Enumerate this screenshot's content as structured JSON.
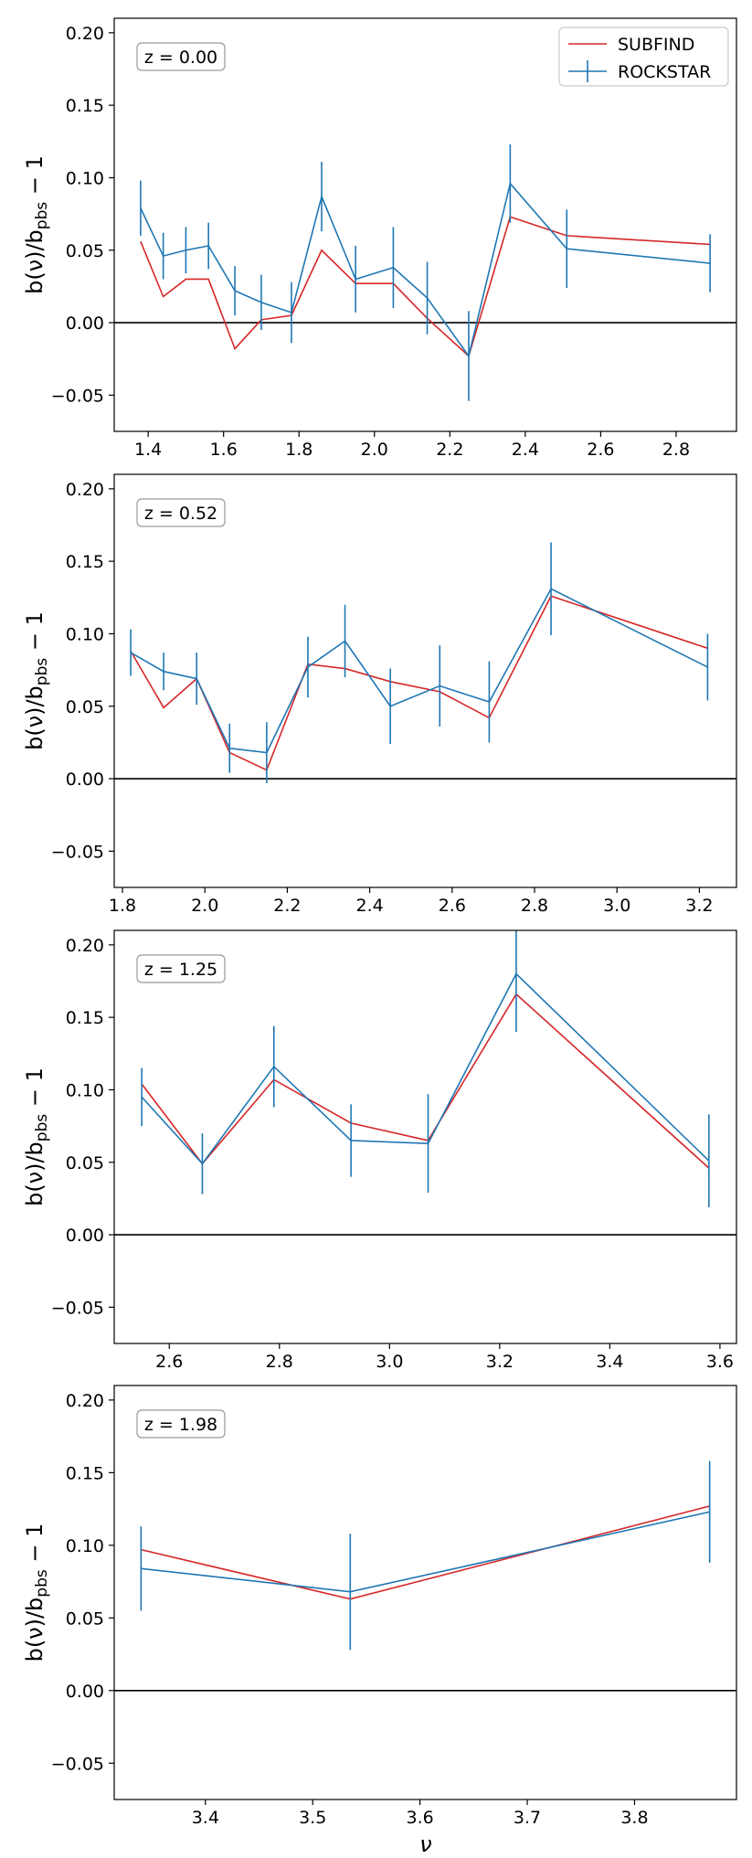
{
  "figure": {
    "shared_xlabel": "ν",
    "series_colors": {
      "SUBFIND": "#d62728",
      "ROCKSTAR": "#1f77b4"
    }
  },
  "legend": {
    "entries": [
      "SUBFIND",
      "ROCKSTAR"
    ]
  },
  "chart_data": [
    {
      "type": "line",
      "annotation": "z = 0.00",
      "ylabel_main": "b(ν)/b",
      "ylabel_sub": "pbs",
      "ylabel_tail": " − 1",
      "xlabel": "",
      "xlim": [
        1.31,
        2.96
      ],
      "ylim": [
        -0.075,
        0.21
      ],
      "xticks": [
        1.4,
        1.6,
        1.8,
        2.0,
        2.2,
        2.4,
        2.6,
        2.8
      ],
      "xtick_labels": [
        "1.4",
        "1.6",
        "1.8",
        "2.0",
        "2.2",
        "2.4",
        "2.6",
        "2.8"
      ],
      "yticks": [
        -0.05,
        0.0,
        0.05,
        0.1,
        0.15,
        0.2
      ],
      "ytick_labels": [
        "−0.05",
        "0.00",
        "0.05",
        "0.10",
        "0.15",
        "0.20"
      ],
      "reference_line": 0.0,
      "series": [
        {
          "name": "SUBFIND",
          "x": [
            1.38,
            1.44,
            1.5,
            1.56,
            1.63,
            1.7,
            1.78,
            1.86,
            1.95,
            2.05,
            2.14,
            2.25,
            2.36,
            2.51,
            2.89
          ],
          "y": [
            0.056,
            0.018,
            0.03,
            0.03,
            -0.018,
            0.002,
            0.005,
            0.05,
            0.027,
            0.027,
            0.003,
            -0.023,
            0.073,
            0.06,
            0.054
          ]
        },
        {
          "name": "ROCKSTAR",
          "x": [
            1.38,
            1.44,
            1.5,
            1.56,
            1.63,
            1.7,
            1.78,
            1.86,
            1.95,
            2.05,
            2.14,
            2.25,
            2.36,
            2.51,
            2.89
          ],
          "y": [
            0.079,
            0.046,
            0.05,
            0.053,
            0.022,
            0.014,
            0.007,
            0.087,
            0.03,
            0.038,
            0.017,
            -0.023,
            0.096,
            0.051,
            0.041
          ],
          "yerr": [
            0.019,
            0.016,
            0.016,
            0.016,
            0.017,
            0.019,
            0.021,
            0.024,
            0.023,
            0.028,
            0.025,
            0.031,
            0.027,
            0.027,
            0.02
          ]
        }
      ]
    },
    {
      "type": "line",
      "annotation": "z = 0.52",
      "ylabel_main": "b(ν)/b",
      "ylabel_sub": "pbs",
      "ylabel_tail": " − 1",
      "xlabel": "",
      "xlim": [
        1.78,
        3.29
      ],
      "ylim": [
        -0.075,
        0.21
      ],
      "xticks": [
        1.8,
        2.0,
        2.2,
        2.4,
        2.6,
        2.8,
        3.0,
        3.2
      ],
      "xtick_labels": [
        "1.8",
        "2.0",
        "2.2",
        "2.4",
        "2.6",
        "2.8",
        "3.0",
        "3.2"
      ],
      "yticks": [
        -0.05,
        0.0,
        0.05,
        0.1,
        0.15,
        0.2
      ],
      "ytick_labels": [
        "−0.05",
        "0.00",
        "0.05",
        "0.10",
        "0.15",
        "0.20"
      ],
      "reference_line": 0.0,
      "series": [
        {
          "name": "SUBFIND",
          "x": [
            1.82,
            1.9,
            1.98,
            2.06,
            2.15,
            2.25,
            2.34,
            2.45,
            2.57,
            2.69,
            2.84,
            3.22
          ],
          "y": [
            0.088,
            0.049,
            0.069,
            0.018,
            0.006,
            0.079,
            0.076,
            0.067,
            0.06,
            0.042,
            0.126,
            0.09
          ]
        },
        {
          "name": "ROCKSTAR",
          "x": [
            1.82,
            1.9,
            1.98,
            2.06,
            2.15,
            2.25,
            2.34,
            2.45,
            2.57,
            2.69,
            2.84,
            3.22
          ],
          "y": [
            0.087,
            0.074,
            0.069,
            0.021,
            0.018,
            0.077,
            0.095,
            0.05,
            0.064,
            0.053,
            0.131,
            0.077
          ],
          "yerr": [
            0.016,
            0.013,
            0.018,
            0.017,
            0.021,
            0.021,
            0.025,
            0.026,
            0.028,
            0.028,
            0.032,
            0.023
          ]
        }
      ]
    },
    {
      "type": "line",
      "annotation": "z = 1.25",
      "ylabel_main": "b(ν)/b",
      "ylabel_sub": "pbs",
      "ylabel_tail": " − 1",
      "xlabel": "",
      "xlim": [
        2.5,
        3.63
      ],
      "ylim": [
        -0.075,
        0.21
      ],
      "xticks": [
        2.6,
        2.8,
        3.0,
        3.2,
        3.4,
        3.6
      ],
      "xtick_labels": [
        "2.6",
        "2.8",
        "3.0",
        "3.2",
        "3.4",
        "3.6"
      ],
      "yticks": [
        -0.05,
        0.0,
        0.05,
        0.1,
        0.15,
        0.2
      ],
      "ytick_labels": [
        "−0.05",
        "0.00",
        "0.05",
        "0.10",
        "0.15",
        "0.20"
      ],
      "reference_line": 0.0,
      "series": [
        {
          "name": "SUBFIND",
          "x": [
            2.55,
            2.66,
            2.79,
            2.93,
            3.07,
            3.23,
            3.58
          ],
          "y": [
            0.104,
            0.049,
            0.107,
            0.077,
            0.065,
            0.166,
            0.046
          ]
        },
        {
          "name": "ROCKSTAR",
          "x": [
            2.55,
            2.66,
            2.79,
            2.93,
            3.07,
            3.23,
            3.58
          ],
          "y": [
            0.095,
            0.049,
            0.116,
            0.065,
            0.063,
            0.18,
            0.051
          ],
          "yerr": [
            0.02,
            0.021,
            0.028,
            0.025,
            0.034,
            0.04,
            0.032
          ]
        }
      ]
    },
    {
      "type": "line",
      "annotation": "z = 1.98",
      "ylabel_main": "b(ν)/b",
      "ylabel_sub": "pbs",
      "ylabel_tail": " − 1",
      "xlabel": "ν",
      "xlim": [
        3.315,
        3.895
      ],
      "ylim": [
        -0.075,
        0.21
      ],
      "xticks": [
        3.4,
        3.5,
        3.6,
        3.7,
        3.8
      ],
      "xtick_labels": [
        "3.4",
        "3.5",
        "3.6",
        "3.7",
        "3.8"
      ],
      "yticks": [
        -0.05,
        0.0,
        0.05,
        0.1,
        0.15,
        0.2
      ],
      "ytick_labels": [
        "−0.05",
        "0.00",
        "0.05",
        "0.10",
        "0.15",
        "0.20"
      ],
      "reference_line": 0.0,
      "series": [
        {
          "name": "SUBFIND",
          "x": [
            3.34,
            3.535,
            3.87
          ],
          "y": [
            0.097,
            0.063,
            0.127
          ]
        },
        {
          "name": "ROCKSTAR",
          "x": [
            3.34,
            3.535,
            3.87
          ],
          "y": [
            0.084,
            0.068,
            0.123
          ],
          "yerr": [
            0.029,
            0.04,
            0.035
          ]
        }
      ]
    }
  ]
}
